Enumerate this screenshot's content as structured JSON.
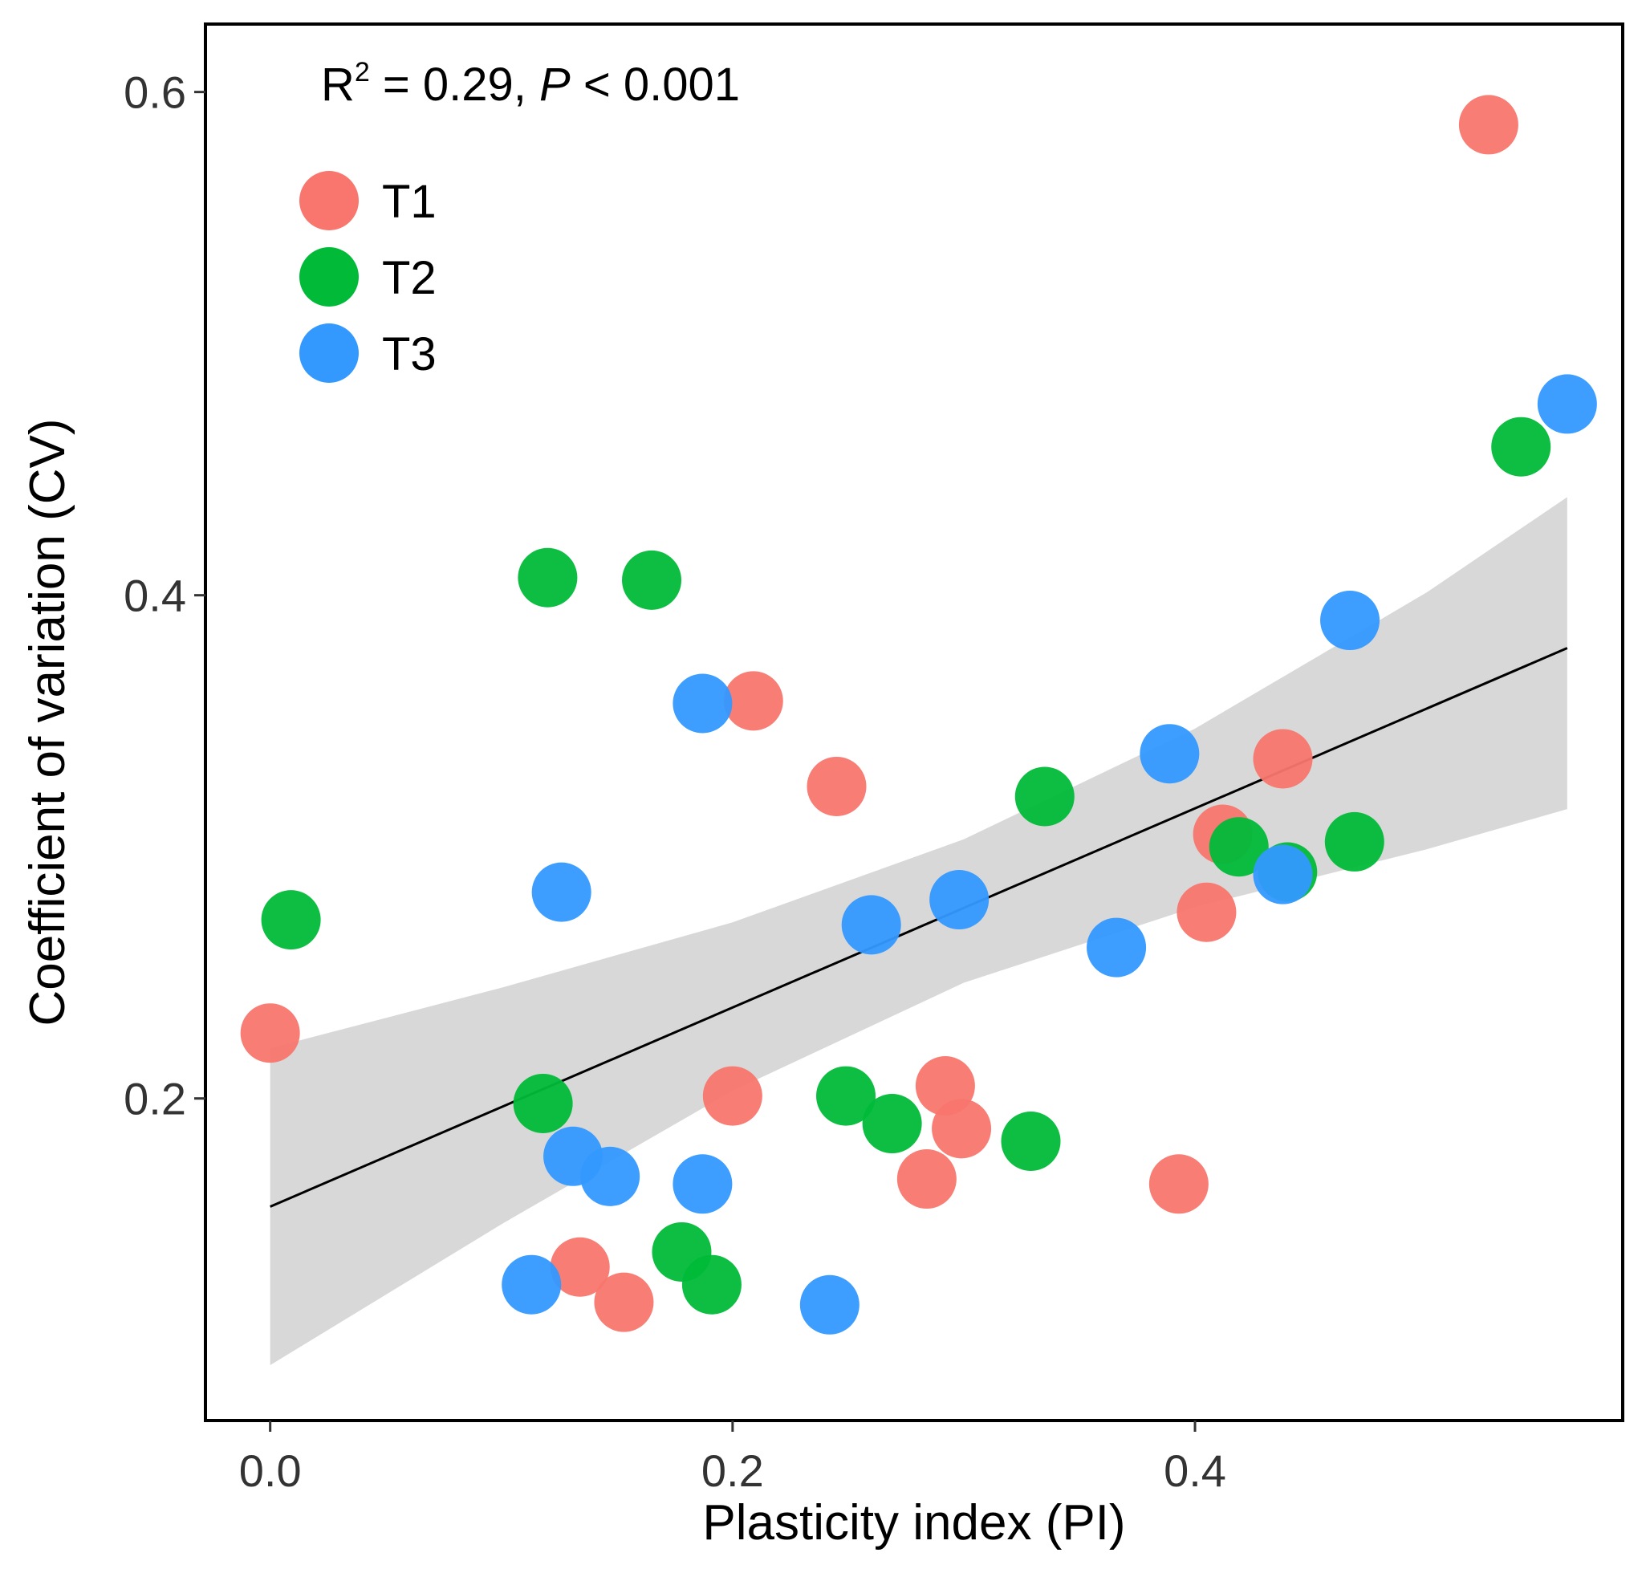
{
  "chart_data": {
    "type": "scatter",
    "title": "",
    "xlabel": "Plasticity index (PI)",
    "ylabel": "Coefficient of variation (CV)",
    "xlim": [
      -0.028,
      0.585
    ],
    "ylim": [
      0.072,
      0.627
    ],
    "xticks": [
      0.0,
      0.2,
      0.4
    ],
    "xtick_labels": [
      "0.0",
      "0.2",
      "0.4"
    ],
    "yticks": [
      0.2,
      0.4,
      0.6
    ],
    "ytick_labels": [
      "0.2",
      "0.4",
      "0.6"
    ],
    "grid": false,
    "legend_position": "top-left",
    "annotation": {
      "r_label": "R",
      "r_sup": "2",
      "r_value": " = 0.29, ",
      "p_label": "P",
      "p_value": " < 0.001"
    },
    "series": [
      {
        "name": "T1",
        "color": "#F8766D",
        "points": [
          [
            0.0,
            0.226
          ],
          [
            0.134,
            0.133
          ],
          [
            0.153,
            0.119
          ],
          [
            0.2,
            0.201
          ],
          [
            0.209,
            0.358
          ],
          [
            0.245,
            0.324
          ],
          [
            0.284,
            0.168
          ],
          [
            0.292,
            0.205
          ],
          [
            0.299,
            0.188
          ],
          [
            0.393,
            0.166
          ],
          [
            0.405,
            0.274
          ],
          [
            0.412,
            0.305
          ],
          [
            0.438,
            0.335
          ],
          [
            0.527,
            0.587
          ]
        ]
      },
      {
        "name": "T2",
        "color": "#00BA38",
        "points": [
          [
            0.009,
            0.271
          ],
          [
            0.118,
            0.198
          ],
          [
            0.12,
            0.407
          ],
          [
            0.165,
            0.406
          ],
          [
            0.178,
            0.139
          ],
          [
            0.191,
            0.126
          ],
          [
            0.249,
            0.201
          ],
          [
            0.269,
            0.19
          ],
          [
            0.329,
            0.183
          ],
          [
            0.335,
            0.32
          ],
          [
            0.419,
            0.3
          ],
          [
            0.44,
            0.29
          ],
          [
            0.469,
            0.302
          ],
          [
            0.541,
            0.459
          ]
        ]
      },
      {
        "name": "T3",
        "color": "#3399FF",
        "points": [
          [
            0.113,
            0.126
          ],
          [
            0.126,
            0.282
          ],
          [
            0.131,
            0.177
          ],
          [
            0.147,
            0.169
          ],
          [
            0.187,
            0.166
          ],
          [
            0.187,
            0.357
          ],
          [
            0.242,
            0.118
          ],
          [
            0.26,
            0.269
          ],
          [
            0.298,
            0.279
          ],
          [
            0.366,
            0.26
          ],
          [
            0.389,
            0.337
          ],
          [
            0.438,
            0.289
          ],
          [
            0.467,
            0.39
          ],
          [
            0.561,
            0.476
          ]
        ]
      }
    ],
    "fit": {
      "x": [
        0.0,
        0.561
      ],
      "y": [
        0.157,
        0.379
      ],
      "ci_x": [
        0.0,
        0.1,
        0.2,
        0.3,
        0.4,
        0.5,
        0.561
      ],
      "ci_upper": [
        0.22,
        0.244,
        0.27,
        0.303,
        0.347,
        0.401,
        0.439
      ],
      "ci_lower": [
        0.094,
        0.15,
        0.203,
        0.246,
        0.276,
        0.299,
        0.315
      ]
    }
  }
}
